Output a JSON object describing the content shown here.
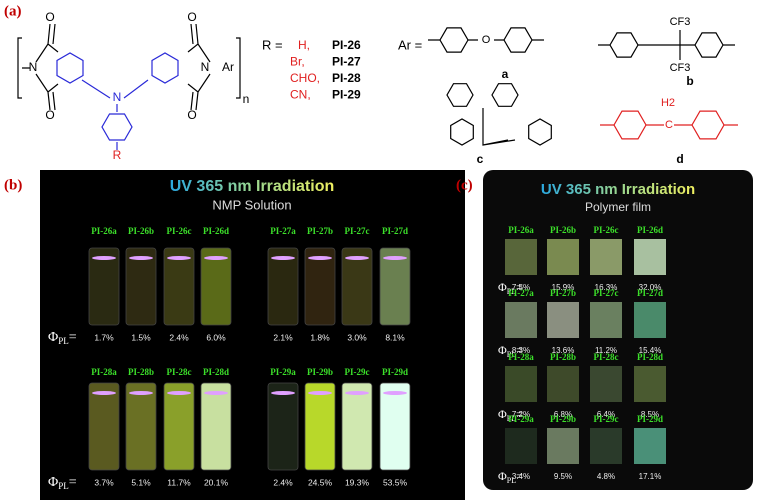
{
  "panel_a": {
    "label": "(a)",
    "structure_labels": [
      "O",
      "O",
      "O",
      "O",
      "N",
      "N",
      "N",
      "Ar",
      "n",
      "R"
    ],
    "r_label": "R =",
    "substituents": [
      {
        "r": "H,",
        "name": "PI-26"
      },
      {
        "r": "Br,",
        "name": "PI-27"
      },
      {
        "r": "CHO,",
        "name": "PI-28"
      },
      {
        "r": "CN,",
        "name": "PI-29"
      }
    ],
    "ar_label": "Ar =",
    "ar_labels": [
      "a",
      "b",
      "c",
      "d"
    ],
    "ar_texts": {
      "o": "O",
      "cf3_top": "CF3",
      "cf3_bottom": "CF3",
      "h2": "H2",
      "c": "C"
    }
  },
  "panel_b": {
    "label": "(b)",
    "title": "UV 365 nm Irradiation",
    "subtitle": "NMP Solution",
    "phi": "Φ",
    "phi_sub": "PL",
    "phi_eq": "=",
    "rows": [
      [
        {
          "name": "PI-26a",
          "phi": "1.7%",
          "color": "#2a2a12"
        },
        {
          "name": "PI-26b",
          "phi": "1.5%",
          "color": "#2e2a12"
        },
        {
          "name": "PI-26c",
          "phi": "2.4%",
          "color": "#3a3a14"
        },
        {
          "name": "PI-26d",
          "phi": "6.0%",
          "color": "#5a6a18"
        },
        {
          "name": "PI-27a",
          "phi": "2.1%",
          "color": "#2a2810"
        },
        {
          "name": "PI-27b",
          "phi": "1.8%",
          "color": "#302410"
        },
        {
          "name": "PI-27c",
          "phi": "3.0%",
          "color": "#3a3816"
        },
        {
          "name": "PI-27d",
          "phi": "8.1%",
          "color": "#6a8050"
        }
      ],
      [
        {
          "name": "PI-28a",
          "phi": "3.7%",
          "color": "#5a5a20"
        },
        {
          "name": "PI-28b",
          "phi": "5.1%",
          "color": "#6a7024"
        },
        {
          "name": "PI-28c",
          "phi": "11.7%",
          "color": "#8aa02a"
        },
        {
          "name": "PI-28d",
          "phi": "20.1%",
          "color": "#c8e0a0"
        },
        {
          "name": "PI-29a",
          "phi": "2.4%",
          "color": "#1c2418"
        },
        {
          "name": "PI-29b",
          "phi": "24.5%",
          "color": "#b8d82a"
        },
        {
          "name": "PI-29c",
          "phi": "19.3%",
          "color": "#d0e8b0"
        },
        {
          "name": "PI-29d",
          "phi": "53.5%",
          "color": "#e0fff0"
        }
      ]
    ]
  },
  "panel_c": {
    "label": "(c)",
    "title": "UV 365 nm Irradiation",
    "subtitle": "Polymer film",
    "phi": "Φ",
    "phi_sub": "PL",
    "phi_eq": "=",
    "rows": [
      [
        {
          "name": "PI-26a",
          "phi": "7.5%",
          "color": "#58663a"
        },
        {
          "name": "PI-26b",
          "phi": "15.9%",
          "color": "#7a8a50"
        },
        {
          "name": "PI-26c",
          "phi": "16.3%",
          "color": "#8a9a68"
        },
        {
          "name": "PI-26d",
          "phi": "32.0%",
          "color": "#a8c0a0"
        }
      ],
      [
        {
          "name": "PI-27a",
          "phi": "8.3%",
          "color": "#6a7a60"
        },
        {
          "name": "PI-27b",
          "phi": "13.6%",
          "color": "#8a8f80"
        },
        {
          "name": "PI-27c",
          "phi": "11.2%",
          "color": "#6a8060"
        },
        {
          "name": "PI-27d",
          "phi": "15.4%",
          "color": "#4a8a6a"
        }
      ],
      [
        {
          "name": "PI-28a",
          "phi": "7.2%",
          "color": "#3a4a28"
        },
        {
          "name": "PI-28b",
          "phi": "6.8%",
          "color": "#3e4a2a"
        },
        {
          "name": "PI-28c",
          "phi": "6.4%",
          "color": "#3a4830"
        },
        {
          "name": "PI-28d",
          "phi": "8.5%",
          "color": "#4a5a30"
        }
      ],
      [
        {
          "name": "PI-29a",
          "phi": "3.4%",
          "color": "#1e2a1e"
        },
        {
          "name": "PI-29b",
          "phi": "9.5%",
          "color": "#6a7a60"
        },
        {
          "name": "PI-29c",
          "phi": "4.8%",
          "color": "#2a3a2a"
        },
        {
          "name": "PI-29d",
          "phi": "17.1%",
          "color": "#4a9078"
        }
      ]
    ]
  }
}
